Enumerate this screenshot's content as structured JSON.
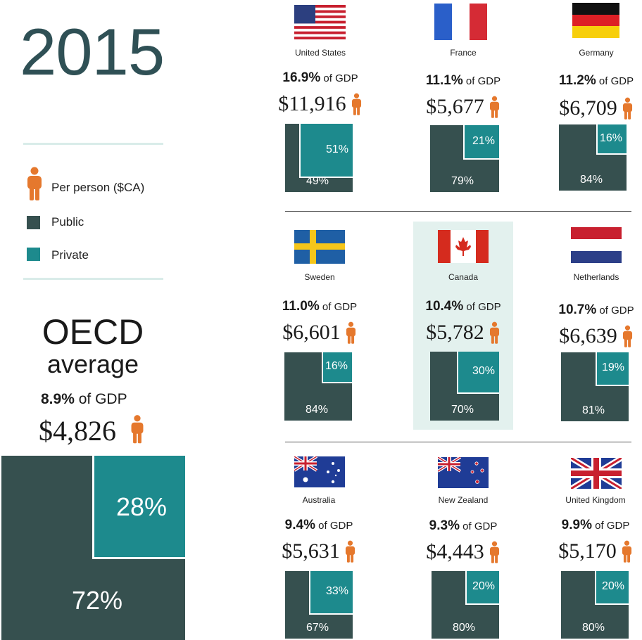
{
  "year": "2015",
  "legend": {
    "per_person": "Per person ($CA)",
    "public": "Public",
    "private": "Private"
  },
  "colors": {
    "public": "#36504f",
    "private": "#1d8a8d",
    "person_icon": "#e5782d",
    "highlight": "#e3f1ee"
  },
  "oecd": {
    "title": "OECD",
    "subtitle": "average",
    "gdp_pct": "8.9%",
    "gdp_text": "of GDP",
    "amount": "$4,826",
    "public_label": "72%",
    "private_label": "28%"
  },
  "chart_data": {
    "type": "table",
    "title": "2015",
    "columns": [
      "country",
      "gdp_share_pct",
      "per_person_cad",
      "public_pct",
      "private_pct"
    ],
    "rows": [
      {
        "country": "United States",
        "gdp_pct": "16.9%",
        "gdp_text": "of GDP",
        "amount": "$11,916",
        "public": 49,
        "private": 51,
        "public_label": "49%",
        "private_label": "51%",
        "flag": "us-flag"
      },
      {
        "country": "France",
        "gdp_pct": "11.1%",
        "gdp_text": "of GDP",
        "amount": "$5,677",
        "public": 79,
        "private": 21,
        "public_label": "79%",
        "private_label": "21%",
        "flag": "france-flag"
      },
      {
        "country": "Germany",
        "gdp_pct": "11.2%",
        "gdp_text": "of GDP",
        "amount": "$6,709",
        "public": 84,
        "private": 16,
        "public_label": "84%",
        "private_label": "16%",
        "flag": "germany-flag"
      },
      {
        "country": "Sweden",
        "gdp_pct": "11.0%",
        "gdp_text": "of GDP",
        "amount": "$6,601",
        "public": 84,
        "private": 16,
        "public_label": "84%",
        "private_label": "16%",
        "flag": "sweden-flag"
      },
      {
        "country": "Canada",
        "gdp_pct": "10.4%",
        "gdp_text": "of GDP",
        "amount": "$5,782",
        "public": 70,
        "private": 30,
        "public_label": "70%",
        "private_label": "30%",
        "flag": "canada-flag"
      },
      {
        "country": "Netherlands",
        "gdp_pct": "10.7%",
        "gdp_text": "of GDP",
        "amount": "$6,639",
        "public": 81,
        "private": 19,
        "public_label": "81%",
        "private_label": "19%",
        "flag": "netherlands-flag"
      },
      {
        "country": "Australia",
        "gdp_pct": "9.4%",
        "gdp_text": "of GDP",
        "amount": "$5,631",
        "public": 67,
        "private": 33,
        "public_label": "67%",
        "private_label": "33%",
        "flag": "australia-flag"
      },
      {
        "country": "New Zealand",
        "gdp_pct": "9.3%",
        "gdp_text": "of GDP",
        "amount": "$4,443",
        "public": 80,
        "private": 20,
        "public_label": "80%",
        "private_label": "20%",
        "flag": "new-zealand-flag"
      },
      {
        "country": "United Kingdom",
        "gdp_pct": "9.9%",
        "gdp_text": "of GDP",
        "amount": "$5,170",
        "public": 80,
        "private": 20,
        "public_label": "80%",
        "private_label": "20%",
        "flag": "uk-flag"
      }
    ],
    "oecd_average": {
      "gdp_share_pct": 8.9,
      "per_person_cad": 4826,
      "public_pct": 72,
      "private_pct": 28
    }
  }
}
